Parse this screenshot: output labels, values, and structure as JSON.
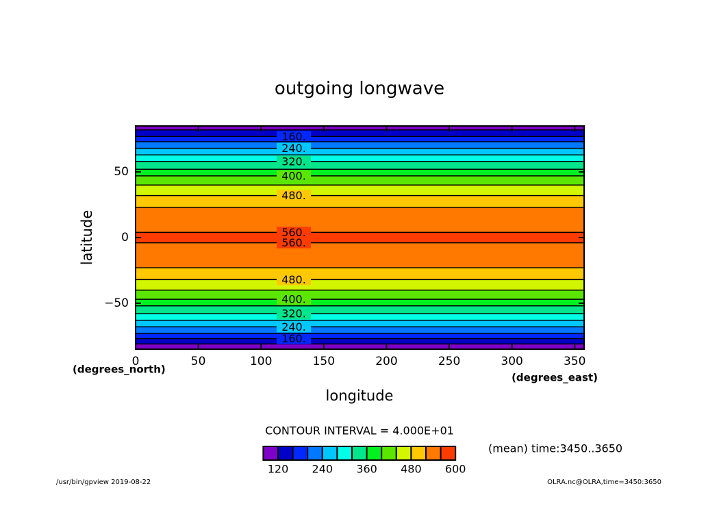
{
  "chart_data": {
    "type": "contour",
    "title": "outgoing longwave",
    "x_label": "longitude",
    "y_label": "latitude",
    "x_unit": "(degrees_east)",
    "y_unit": "(degrees_north)",
    "xlim": [
      0,
      357.5
    ],
    "ylim": [
      -85,
      85
    ],
    "xticks": [
      0,
      50,
      100,
      150,
      200,
      250,
      300,
      350
    ],
    "yticks": [
      {
        "value": -50,
        "label": "−50"
      },
      0,
      50
    ],
    "levels": [
      120,
      160,
      200,
      240,
      280,
      320,
      360,
      400,
      440,
      480,
      520,
      560
    ],
    "north_lat": [
      82,
      77,
      73,
      68,
      63,
      58,
      52,
      47,
      40,
      32,
      23,
      4
    ],
    "south_lat": [
      -81,
      -77,
      -73,
      -68,
      -63,
      -58,
      -52,
      -47,
      -40,
      -32,
      -23,
      -4
    ],
    "level_labels": [
      null,
      "160.",
      null,
      "240.",
      null,
      "320.",
      null,
      "400.",
      null,
      "480.",
      null,
      "560."
    ],
    "colors": [
      "#7f00c8",
      "#0000c8",
      "#0028ff",
      "#0078ff",
      "#00c8ff",
      "#00ffe6",
      "#00e68c",
      "#00f020",
      "#5ae600",
      "#d2f500",
      "#ffc800",
      "#ff7800",
      "#ff3c00",
      "#ff2828",
      "#ffa0a0"
    ],
    "colorbar_ticks": [
      120,
      240,
      360,
      480,
      600
    ],
    "contour_interval": "CONTOUR INTERVAL = 4.000E+01",
    "time_note": "(mean) time:3450..3650",
    "footer_left": "/usr/bin/gpview   2019-08-22",
    "footer_right": "OLRA.nc@OLRA,time=3450:3650"
  }
}
